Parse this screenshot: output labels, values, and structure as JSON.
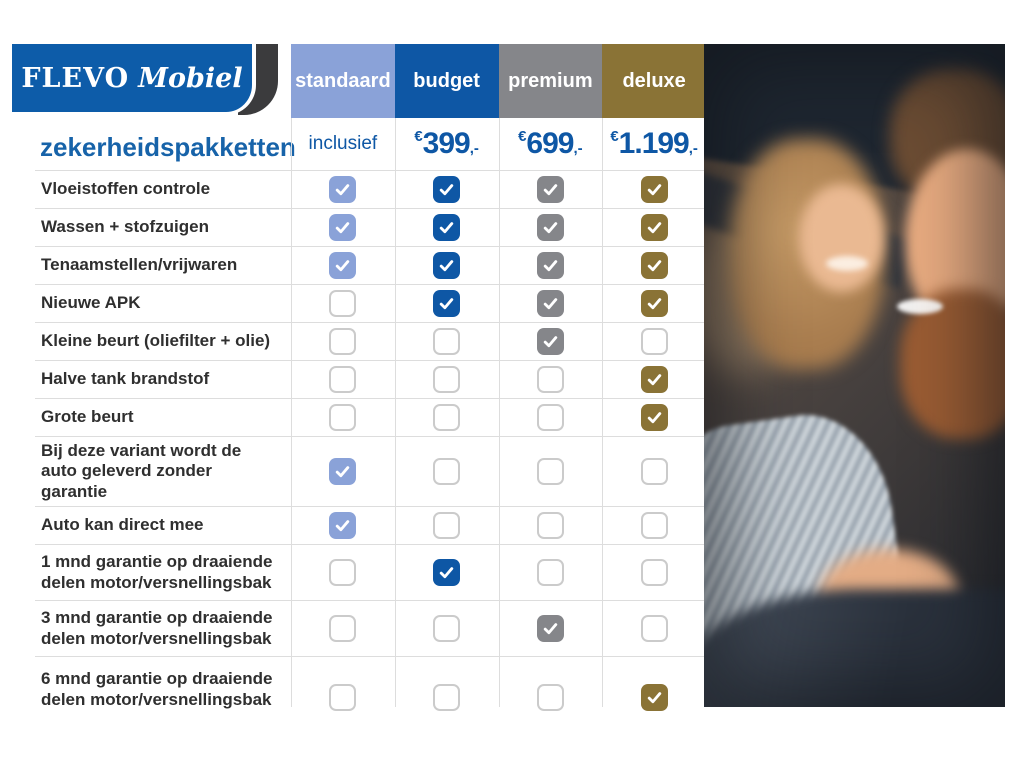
{
  "logo": {
    "brand": "FLEVO",
    "brand2": "Mobiel"
  },
  "title": "zekerheidspakketten",
  "currency": "€",
  "price_suffix": ",-",
  "packages": [
    {
      "label": "standaard",
      "color": "#8AA2D8",
      "price_text": "inclusief"
    },
    {
      "label": "budget",
      "color": "#0E57A5",
      "price_amount": "399"
    },
    {
      "label": "premium",
      "color": "#85868A",
      "price_amount": "699"
    },
    {
      "label": "deluxe",
      "color": "#8A7336",
      "price_amount": "1.199"
    }
  ],
  "rows": [
    {
      "label": "Vloeistoffen controle",
      "checks": [
        true,
        true,
        true,
        true
      ]
    },
    {
      "label": "Wassen + stofzuigen",
      "checks": [
        true,
        true,
        true,
        true
      ]
    },
    {
      "label": "Tenaamstellen/vrijwaren",
      "checks": [
        true,
        true,
        true,
        true
      ]
    },
    {
      "label": "Nieuwe APK",
      "checks": [
        false,
        true,
        true,
        true
      ]
    },
    {
      "label": "Kleine beurt (oliefilter + olie)",
      "checks": [
        false,
        false,
        true,
        false
      ]
    },
    {
      "label": "Halve tank brandstof",
      "checks": [
        false,
        false,
        false,
        true
      ]
    },
    {
      "label": "Grote beurt",
      "checks": [
        false,
        false,
        false,
        true
      ]
    },
    {
      "label": "Bij deze variant wordt de auto geleverd zonder garantie",
      "checks": [
        true,
        false,
        false,
        false
      ]
    },
    {
      "label": "Auto kan direct mee",
      "checks": [
        true,
        false,
        false,
        false
      ]
    },
    {
      "label": "1 mnd garantie op draaiende delen motor/versnellingsbak",
      "checks": [
        false,
        true,
        false,
        false
      ]
    },
    {
      "label": "3 mnd garantie op draaiende delen motor/versnellingsbak",
      "checks": [
        false,
        false,
        true,
        false
      ]
    },
    {
      "label": "6 mnd garantie op draaiende delen motor/versnellingsbak",
      "checks": [
        false,
        false,
        false,
        true
      ]
    }
  ],
  "photo": {
    "description": "Smiling man and woman in a car"
  },
  "colors": {
    "logo_blue": "#0D5CA9",
    "logo_dark": "#3B3B3D",
    "title_blue": "#1763A9",
    "price_blue": "#0E57A5",
    "label_text": "#2F2F2F",
    "separator": "#DDDDDD",
    "unchecked_border": "#CBCBCB"
  }
}
